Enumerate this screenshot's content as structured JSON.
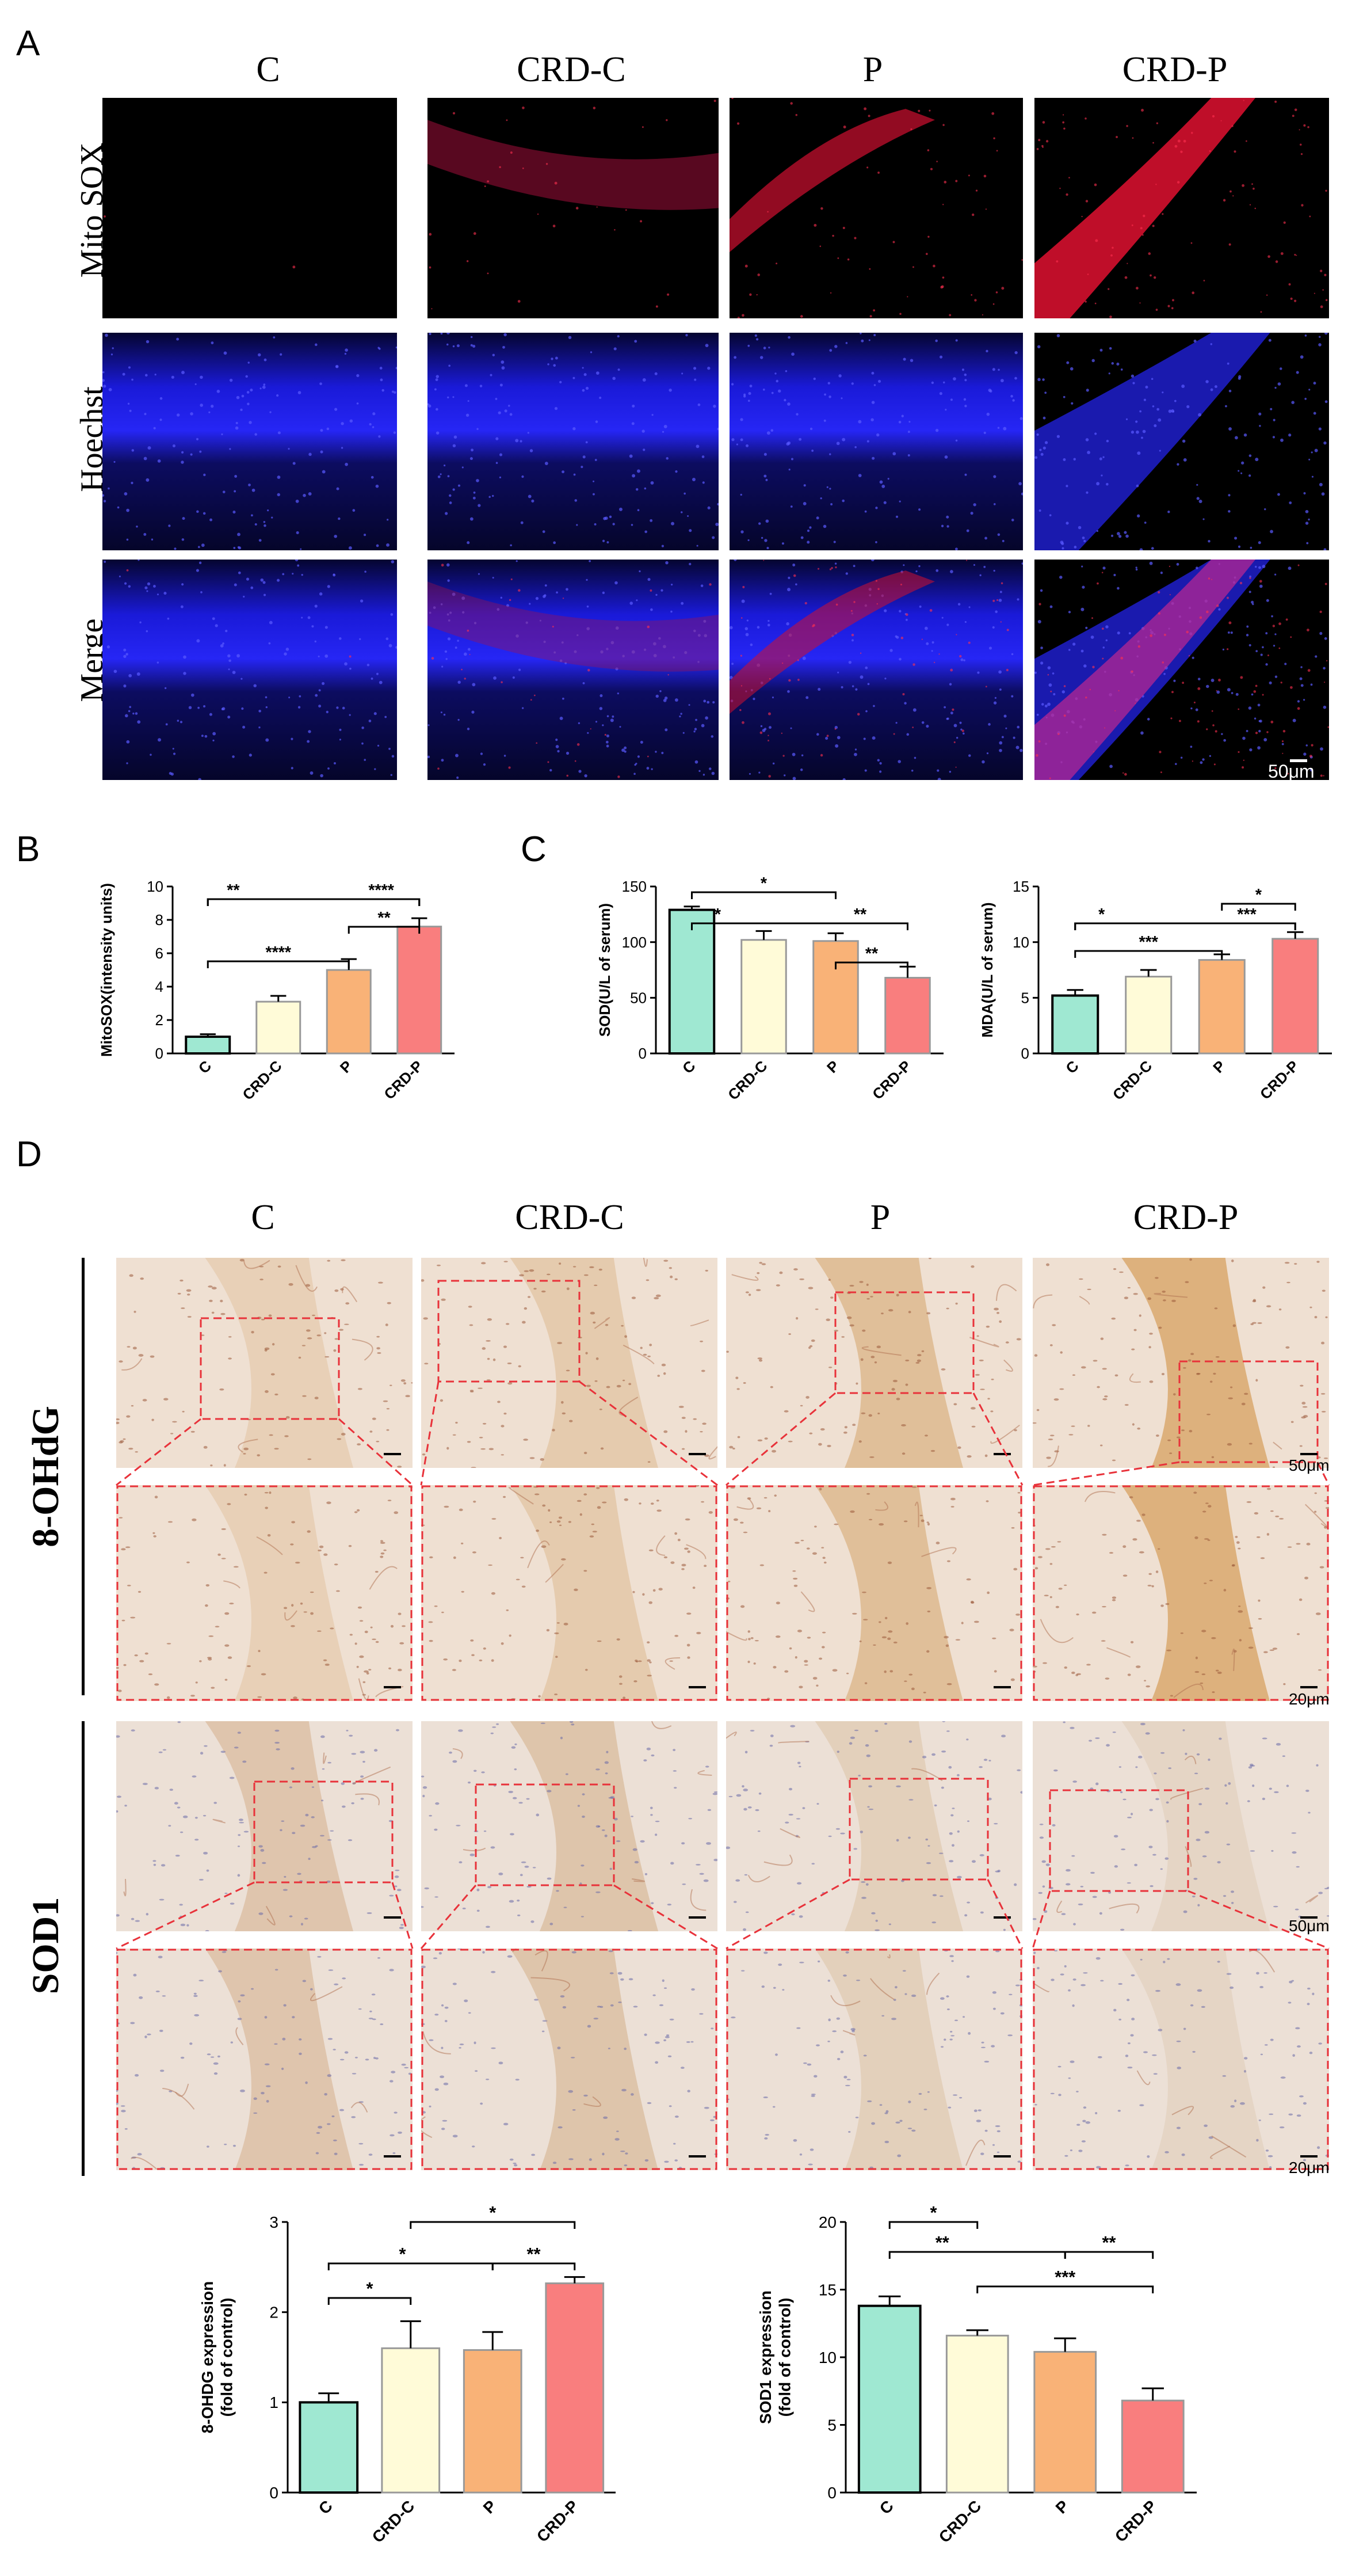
{
  "panel_letters": {
    "a": "A",
    "b": "B",
    "c": "C",
    "d": "D"
  },
  "groups": [
    "C",
    "CRD-C",
    "P",
    "CRD-P"
  ],
  "panel_a": {
    "rows": [
      "Mito SOX",
      "Hoechst",
      "Merge"
    ],
    "scale_bar": "50μm"
  },
  "panel_d": {
    "rows": [
      "8-OHdG",
      "SOD1"
    ],
    "scale_low": "50μm",
    "scale_high": "20μm"
  },
  "colors": {
    "C": "#9fe8d2",
    "CRD-C": "#fffbd8",
    "P": "#f9b277",
    "CRD-P": "#f97e7e"
  },
  "chart_data": [
    {
      "id": "mitosox",
      "type": "bar",
      "categories": [
        "C",
        "CRD-C",
        "P",
        "CRD-P"
      ],
      "values": [
        1.0,
        3.1,
        5.0,
        7.6
      ],
      "errors": [
        0.15,
        0.35,
        0.65,
        0.5
      ],
      "ylabel": "MitoSOX(intensity units)",
      "ylim": [
        0,
        10
      ],
      "yticks": [
        "0",
        "2",
        "4",
        "6",
        "8",
        "10"
      ],
      "annotations": [
        {
          "from": 0,
          "to": 3,
          "label": "**"
        },
        {
          "from": 0,
          "to": 3,
          "label": "****",
          "level": 2
        },
        {
          "from": 0,
          "to": 2,
          "label": "****"
        },
        {
          "from": 2,
          "to": 3,
          "label": "**"
        }
      ]
    },
    {
      "id": "sod",
      "type": "bar",
      "categories": [
        "C",
        "CRD-C",
        "P",
        "CRD-P"
      ],
      "values": [
        129,
        102,
        101,
        68
      ],
      "errors": [
        3,
        8,
        7,
        10
      ],
      "ylabel": "SOD(U/L of serum)",
      "ylim": [
        0,
        150
      ],
      "yticks": [
        "0",
        "50",
        "100",
        "150"
      ],
      "annotations": [
        {
          "from": 0,
          "to": 2,
          "label": "*"
        },
        {
          "from": 0,
          "to": 3,
          "label": "*"
        },
        {
          "from": 0,
          "to": 3,
          "label": "**"
        },
        {
          "from": 2,
          "to": 3,
          "label": "**"
        }
      ]
    },
    {
      "id": "mda",
      "type": "bar",
      "categories": [
        "C",
        "CRD-C",
        "P",
        "CRD-P"
      ],
      "values": [
        5.2,
        6.9,
        8.4,
        10.3
      ],
      "errors": [
        0.5,
        0.6,
        0.5,
        0.6
      ],
      "ylabel": "MDA(U/L of serum)",
      "ylim": [
        0,
        15
      ],
      "yticks": [
        "0",
        "5",
        "10",
        "15"
      ],
      "annotations": [
        {
          "from": 0,
          "to": 3,
          "label": "*"
        },
        {
          "from": 0,
          "to": 3,
          "label": "***"
        },
        {
          "from": 0,
          "to": 2,
          "label": "***"
        },
        {
          "from": 2,
          "to": 3,
          "label": "*"
        }
      ]
    },
    {
      "id": "ohdg",
      "type": "bar",
      "categories": [
        "C",
        "CRD-C",
        "P",
        "CRD-P"
      ],
      "values": [
        1.0,
        1.6,
        1.58,
        2.32
      ],
      "errors": [
        0.1,
        0.3,
        0.2,
        0.07
      ],
      "ylabel": "8-OHDG expression",
      "ylabel2": "(fold of control)",
      "ylim": [
        0,
        3
      ],
      "yticks": [
        "0",
        "1",
        "2",
        "3"
      ],
      "annotations": [
        {
          "from": 1,
          "to": 3,
          "label": "*"
        },
        {
          "from": 0,
          "to": 2,
          "label": "*"
        },
        {
          "from": 2,
          "to": 3,
          "label": "**"
        },
        {
          "from": 0,
          "to": 1,
          "label": "*"
        }
      ]
    },
    {
      "id": "sod1",
      "type": "bar",
      "categories": [
        "C",
        "CRD-C",
        "P",
        "CRD-P"
      ],
      "values": [
        13.8,
        11.6,
        10.4,
        6.8
      ],
      "errors": [
        0.7,
        0.4,
        1.0,
        0.9
      ],
      "ylabel": "SOD1 expression",
      "ylabel2": "(fold of control)",
      "ylim": [
        0,
        20
      ],
      "yticks": [
        "0",
        "5",
        "10",
        "15",
        "20"
      ],
      "annotations": [
        {
          "from": 0,
          "to": 1,
          "label": "*"
        },
        {
          "from": 0,
          "to": 2,
          "label": "**"
        },
        {
          "from": 2,
          "to": 3,
          "label": "**"
        },
        {
          "from": 1,
          "to": 3,
          "label": "***"
        }
      ]
    }
  ]
}
